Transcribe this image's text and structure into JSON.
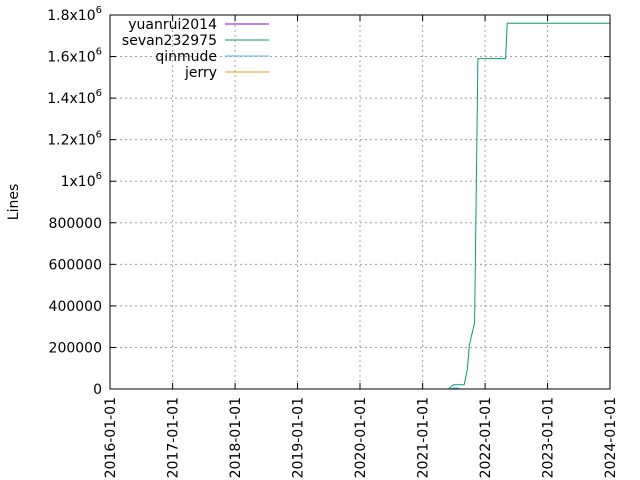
{
  "chart_data": {
    "type": "line",
    "title": "",
    "xlabel": "",
    "ylabel": "Lines",
    "x_axis_type": "date",
    "xlim": [
      "2016-01-01",
      "2024-01-01"
    ],
    "ylim": [
      0,
      1800000
    ],
    "grid": true,
    "legend_position": "top-left",
    "x_ticks": [
      "2016-01-01",
      "2017-01-01",
      "2018-01-01",
      "2019-01-01",
      "2020-01-01",
      "2021-01-01",
      "2022-01-01",
      "2023-01-01",
      "2024-01-01"
    ],
    "y_ticks": [
      {
        "value": 0,
        "label": "0"
      },
      {
        "value": 200000,
        "label": "200000"
      },
      {
        "value": 400000,
        "label": "400000"
      },
      {
        "value": 600000,
        "label": "600000"
      },
      {
        "value": 800000,
        "label": "800000"
      },
      {
        "value": 1000000,
        "mantissa": "1x10",
        "exp": "6"
      },
      {
        "value": 1200000,
        "mantissa": "1.2x10",
        "exp": "6"
      },
      {
        "value": 1400000,
        "mantissa": "1.4x10",
        "exp": "6"
      },
      {
        "value": 1600000,
        "mantissa": "1.6x10",
        "exp": "6"
      },
      {
        "value": 1800000,
        "mantissa": "1.8x10",
        "exp": "6"
      }
    ],
    "series": [
      {
        "name": "yuanrui2014",
        "color": "#9400d3",
        "points": [
          [
            "2021-07-01",
            0
          ],
          [
            "2021-08-01",
            0
          ]
        ]
      },
      {
        "name": "sevan232975",
        "color": "#009e73",
        "points": [
          [
            "2021-05-01",
            0
          ],
          [
            "2021-06-01",
            0
          ],
          [
            "2021-06-15",
            10000
          ],
          [
            "2021-07-01",
            20000
          ],
          [
            "2021-09-01",
            20000
          ],
          [
            "2021-09-20",
            100000
          ],
          [
            "2021-10-01",
            210000
          ],
          [
            "2021-11-01",
            320000
          ],
          [
            "2021-11-20",
            1590000
          ],
          [
            "2022-05-01",
            1590000
          ],
          [
            "2022-05-10",
            1760000
          ],
          [
            "2023-12-31",
            1760000
          ]
        ]
      },
      {
        "name": "qinmude",
        "color": "#56b4e9",
        "points": [
          [
            "2021-06-10",
            0
          ],
          [
            "2021-07-01",
            5000
          ],
          [
            "2021-08-01",
            5000
          ]
        ]
      },
      {
        "name": "jerry",
        "color": "#e69f00",
        "points": [
          [
            "2021-06-01",
            0
          ],
          [
            "2021-08-01",
            0
          ]
        ]
      }
    ]
  }
}
